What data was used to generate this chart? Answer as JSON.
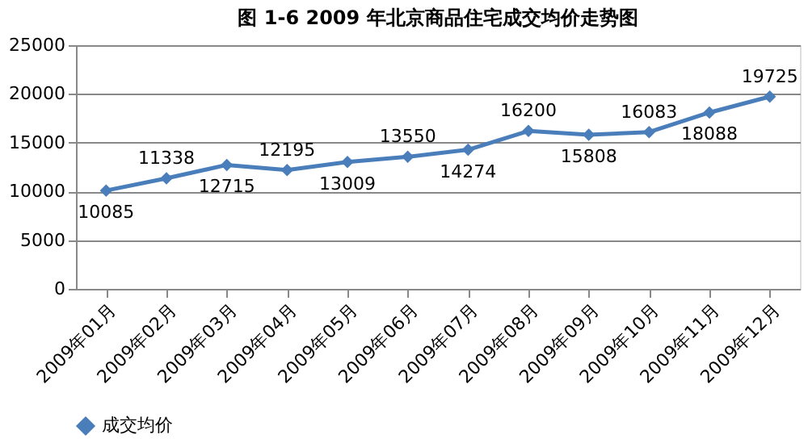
{
  "chart_data": {
    "type": "line",
    "title": "图 1-6    2009 年北京商品住宅成交均价走势图",
    "categories": [
      "2009年01月",
      "2009年02月",
      "2009年03月",
      "2009年04月",
      "2009年05月",
      "2009年06月",
      "2009年07月",
      "2009年08月",
      "2009年09月",
      "2009年10月",
      "2009年11月",
      "2009年12月"
    ],
    "series": [
      {
        "name": "成交均价",
        "color": "#4a7ebb",
        "values": [
          10085,
          11338,
          12715,
          12195,
          13009,
          13550,
          14274,
          16200,
          15808,
          16083,
          18088,
          19725
        ]
      }
    ],
    "ylim": [
      0,
      25000
    ],
    "yticks": [
      0,
      5000,
      10000,
      15000,
      20000,
      25000
    ],
    "grid": "y",
    "legend": "bottom",
    "marker": "diamond",
    "line_style": "solid",
    "data_labels": true
  }
}
